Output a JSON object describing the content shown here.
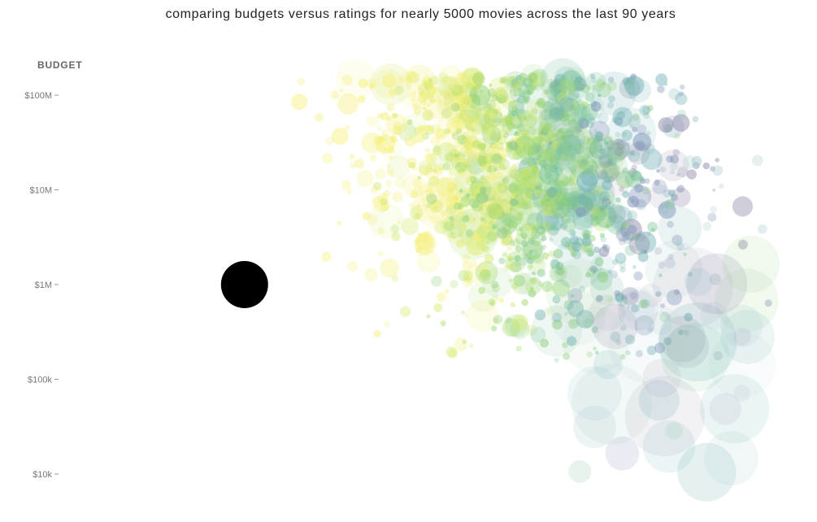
{
  "header": {
    "title": "comparing budgets versus ratings for nearly 5000 movies across the last 90 years",
    "y_axis_label": "BUDGET"
  },
  "chart_data": {
    "type": "scatter",
    "title": "comparing budgets versus ratings for nearly 5000 movies across the last 90 years",
    "xlabel": "",
    "ylabel": "BUDGET",
    "yscale": "log",
    "ylim": [
      5000,
      200000000
    ],
    "xlim": [
      0,
      10
    ],
    "x_axis_visible": false,
    "grid": false,
    "legend": "none",
    "y_ticks": [
      {
        "value": 100000000,
        "label": "$100M"
      },
      {
        "value": 10000000,
        "label": "$10M"
      },
      {
        "value": 1000000,
        "label": "$1M"
      },
      {
        "value": 100000,
        "label": "$100k"
      },
      {
        "value": 10000,
        "label": "$10k"
      }
    ],
    "highlight": {
      "x": 2.4,
      "y": 1000000,
      "color": "#000000"
    },
    "point_count_approx": 5000,
    "colors": [
      "#f5f07a",
      "#d6ea70",
      "#a9dc6a",
      "#8fd07a",
      "#79c39a",
      "#6fb0b4",
      "#7d93b8",
      "#9088a8",
      "#a6c7c9"
    ]
  }
}
